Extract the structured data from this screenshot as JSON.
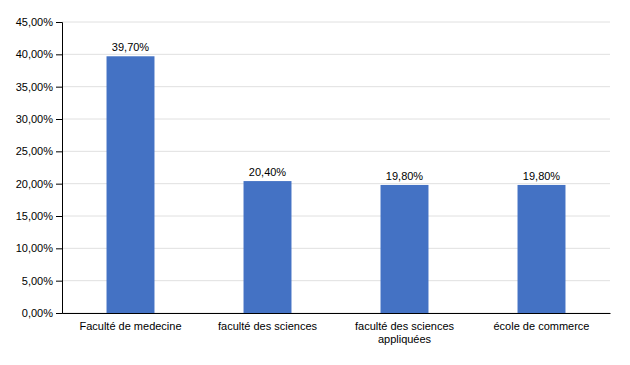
{
  "chart_data": {
    "type": "bar",
    "categories": [
      "Faculté de medecine",
      "faculté des sciences",
      "faculté des sciences\nappliquées",
      "école de commerce"
    ],
    "values": [
      39.7,
      20.4,
      19.8,
      19.8
    ],
    "value_labels": [
      "39,70%",
      "20,40%",
      "19,80%",
      "19,80%"
    ],
    "color": "#4472C4",
    "ylim": [
      0,
      45
    ],
    "yticks": [
      {
        "value": 0,
        "label": "0,00%"
      },
      {
        "value": 5,
        "label": "5,00%"
      },
      {
        "value": 10,
        "label": "10,00%"
      },
      {
        "value": 15,
        "label": "15,00%"
      },
      {
        "value": 20,
        "label": "20,00%"
      },
      {
        "value": 25,
        "label": "25,00%"
      },
      {
        "value": 30,
        "label": "30,00%"
      },
      {
        "value": 35,
        "label": "35,00%"
      },
      {
        "value": 40,
        "label": "40,00%"
      },
      {
        "value": 45,
        "label": "45,00%"
      }
    ],
    "grid": true,
    "data_labels": true
  }
}
